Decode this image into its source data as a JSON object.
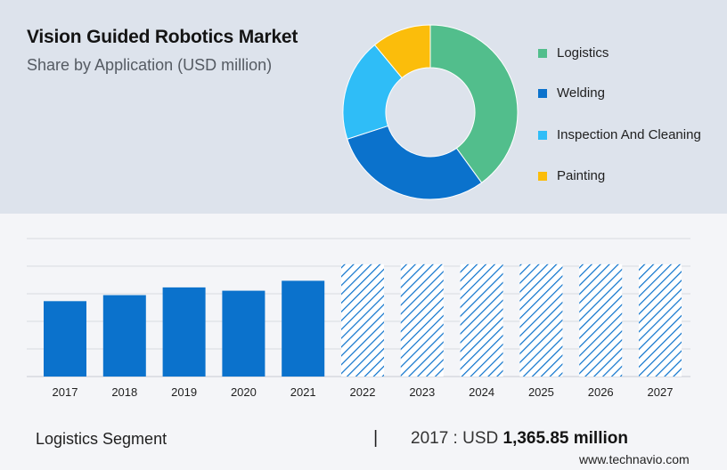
{
  "header": {
    "title": "Vision Guided Robotics Market",
    "subtitle": "Share by Application (USD million)"
  },
  "legend": {
    "items": [
      {
        "label": "Logistics",
        "color": "#52be8c"
      },
      {
        "label": "Welding",
        "color": "#0b72cc"
      },
      {
        "label": "Inspection And Cleaning",
        "color": "#2fbdf7"
      },
      {
        "label": "Painting",
        "color": "#fbbd0b"
      }
    ]
  },
  "footer": {
    "segment_label": "Logistics Segment",
    "divider": "|",
    "year_prefix": "2017 : USD ",
    "value_text": "1,365.85 million"
  },
  "brand": {
    "text": "www.technavio.com"
  },
  "chart_data": [
    {
      "type": "pie",
      "style": "donut",
      "categories": [
        "Logistics",
        "Welding",
        "Inspection And Cleaning",
        "Painting"
      ],
      "values": [
        40,
        30,
        19,
        11
      ],
      "colors": [
        "#52be8c",
        "#0b72cc",
        "#2fbdf7",
        "#fbbd0b"
      ]
    },
    {
      "type": "bar",
      "categories": [
        "2017",
        "2018",
        "2019",
        "2020",
        "2021",
        "2022",
        "2023",
        "2024",
        "2025",
        "2026",
        "2027"
      ],
      "values": [
        1365.85,
        1475,
        1615,
        1555,
        1735,
        2035,
        2035,
        2035,
        2035,
        2035,
        2035
      ],
      "forecast_from": "2022",
      "ylim": [
        0,
        2500
      ],
      "grid": true,
      "colors": {
        "actual": "#0b72cc",
        "forecast": "#0b72cc"
      }
    }
  ]
}
